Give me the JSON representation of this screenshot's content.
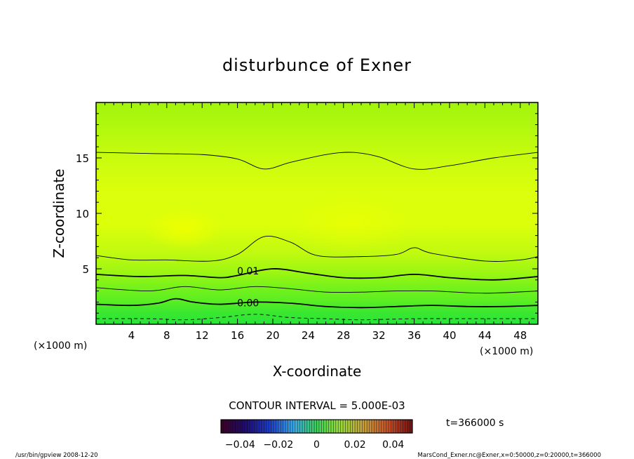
{
  "chart_data": {
    "type": "heatmap",
    "title": "disturbunce of Exner",
    "xlabel": "X-coordinate",
    "ylabel": "Z-coordinate",
    "x_unit_label": "(×1000 m)",
    "z_unit_label": "(×1000 m)",
    "xlim": [
      0,
      50
    ],
    "ylim": [
      0,
      20
    ],
    "x_ticks": [
      4,
      8,
      12,
      16,
      20,
      24,
      28,
      32,
      36,
      40,
      44,
      48
    ],
    "y_ticks": [
      5,
      10,
      15
    ],
    "contour_interval_label": "CONTOUR INTERVAL = 5.000E-03",
    "contour_labels": [
      {
        "text": "0.01",
        "x": 17.2,
        "z": 4.5
      },
      {
        "text": "0.00",
        "x": 17.2,
        "z": 1.6
      }
    ],
    "time_label": "t=366000 s",
    "colorbar": {
      "range": [
        -0.05,
        0.05
      ],
      "tick_values": [
        -0.04,
        -0.02,
        0,
        0.02,
        0.04
      ],
      "tick_labels": [
        "−0.04",
        "−0.02",
        "0",
        "0.02",
        "0.04"
      ]
    },
    "footer_left": "/usr/bin/gpview   2008-12-20",
    "footer_right": "MarsCond_Exner.nc@Exner,x=0:50000,z=0:20000,t=366000"
  }
}
